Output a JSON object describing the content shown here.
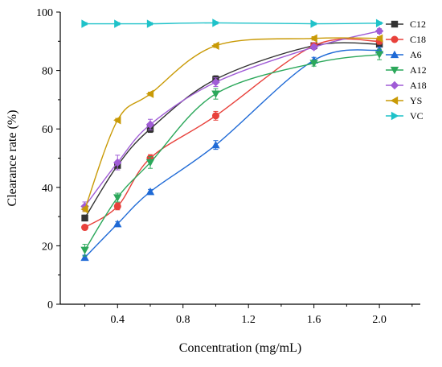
{
  "chart_data": {
    "type": "line",
    "title": "",
    "xlabel": "Concentration (mg/mL)",
    "ylabel": "Clearance rate (%)",
    "xlim": [
      0.05,
      2.25
    ],
    "ylim": [
      0,
      100
    ],
    "xticks": [
      0.4,
      0.8,
      1.2,
      1.6,
      2.0
    ],
    "xtick_labels": [
      "0.4",
      "0.8",
      "1.2",
      "1.6",
      "2.0"
    ],
    "yticks": [
      0,
      20,
      40,
      60,
      80,
      100
    ],
    "ytick_labels": [
      "0",
      "20",
      "40",
      "60",
      "80",
      "100"
    ],
    "x": [
      0.2,
      0.4,
      0.6,
      1.0,
      1.6,
      2.0
    ],
    "grid": false,
    "legend_position": "top-right",
    "series": [
      {
        "name": "C12",
        "color": "#333333",
        "marker": "square",
        "values": [
          29.5,
          47.5,
          60.0,
          77.0,
          88.5,
          89.0
        ],
        "errors": [
          1.0,
          1.5,
          1.2,
          1.2,
          0.8,
          1.0
        ]
      },
      {
        "name": "C18",
        "color": "#e8413b",
        "marker": "circle",
        "values": [
          26.3,
          33.5,
          50.0,
          64.5,
          88.5,
          90.0
        ],
        "errors": [
          0.8,
          1.2,
          1.2,
          1.5,
          0.8,
          1.0
        ]
      },
      {
        "name": "A6",
        "color": "#1f6ad6",
        "marker": "triangle-up",
        "values": [
          16.0,
          27.5,
          38.5,
          54.5,
          83.5,
          87.0
        ],
        "errors": [
          0.8,
          0.8,
          0.8,
          1.5,
          1.0,
          1.0
        ]
      },
      {
        "name": "A12",
        "color": "#2ca85b",
        "marker": "triangle-down",
        "values": [
          18.5,
          36.5,
          48.5,
          72.0,
          82.5,
          85.5
        ],
        "errors": [
          2.0,
          1.5,
          2.0,
          1.8,
          1.0,
          1.8
        ]
      },
      {
        "name": "A18",
        "color": "#a05cd6",
        "marker": "diamond",
        "values": [
          33.5,
          48.5,
          61.5,
          76.0,
          88.0,
          93.5
        ],
        "errors": [
          1.5,
          2.5,
          1.8,
          1.5,
          0.8,
          0.8
        ]
      },
      {
        "name": "YS",
        "color": "#c99a06",
        "marker": "triangle-left",
        "values": [
          32.5,
          63.0,
          72.0,
          88.5,
          91.0,
          91.0
        ],
        "errors": [
          0.8,
          0.6,
          0.6,
          0.6,
          0.6,
          0.6
        ]
      },
      {
        "name": "VC",
        "color": "#1fc2c9",
        "marker": "triangle-right",
        "values": [
          96.0,
          96.0,
          96.0,
          96.3,
          96.0,
          96.2
        ],
        "errors": [
          0.4,
          0.4,
          0.4,
          0.4,
          0.4,
          0.4
        ]
      }
    ]
  }
}
